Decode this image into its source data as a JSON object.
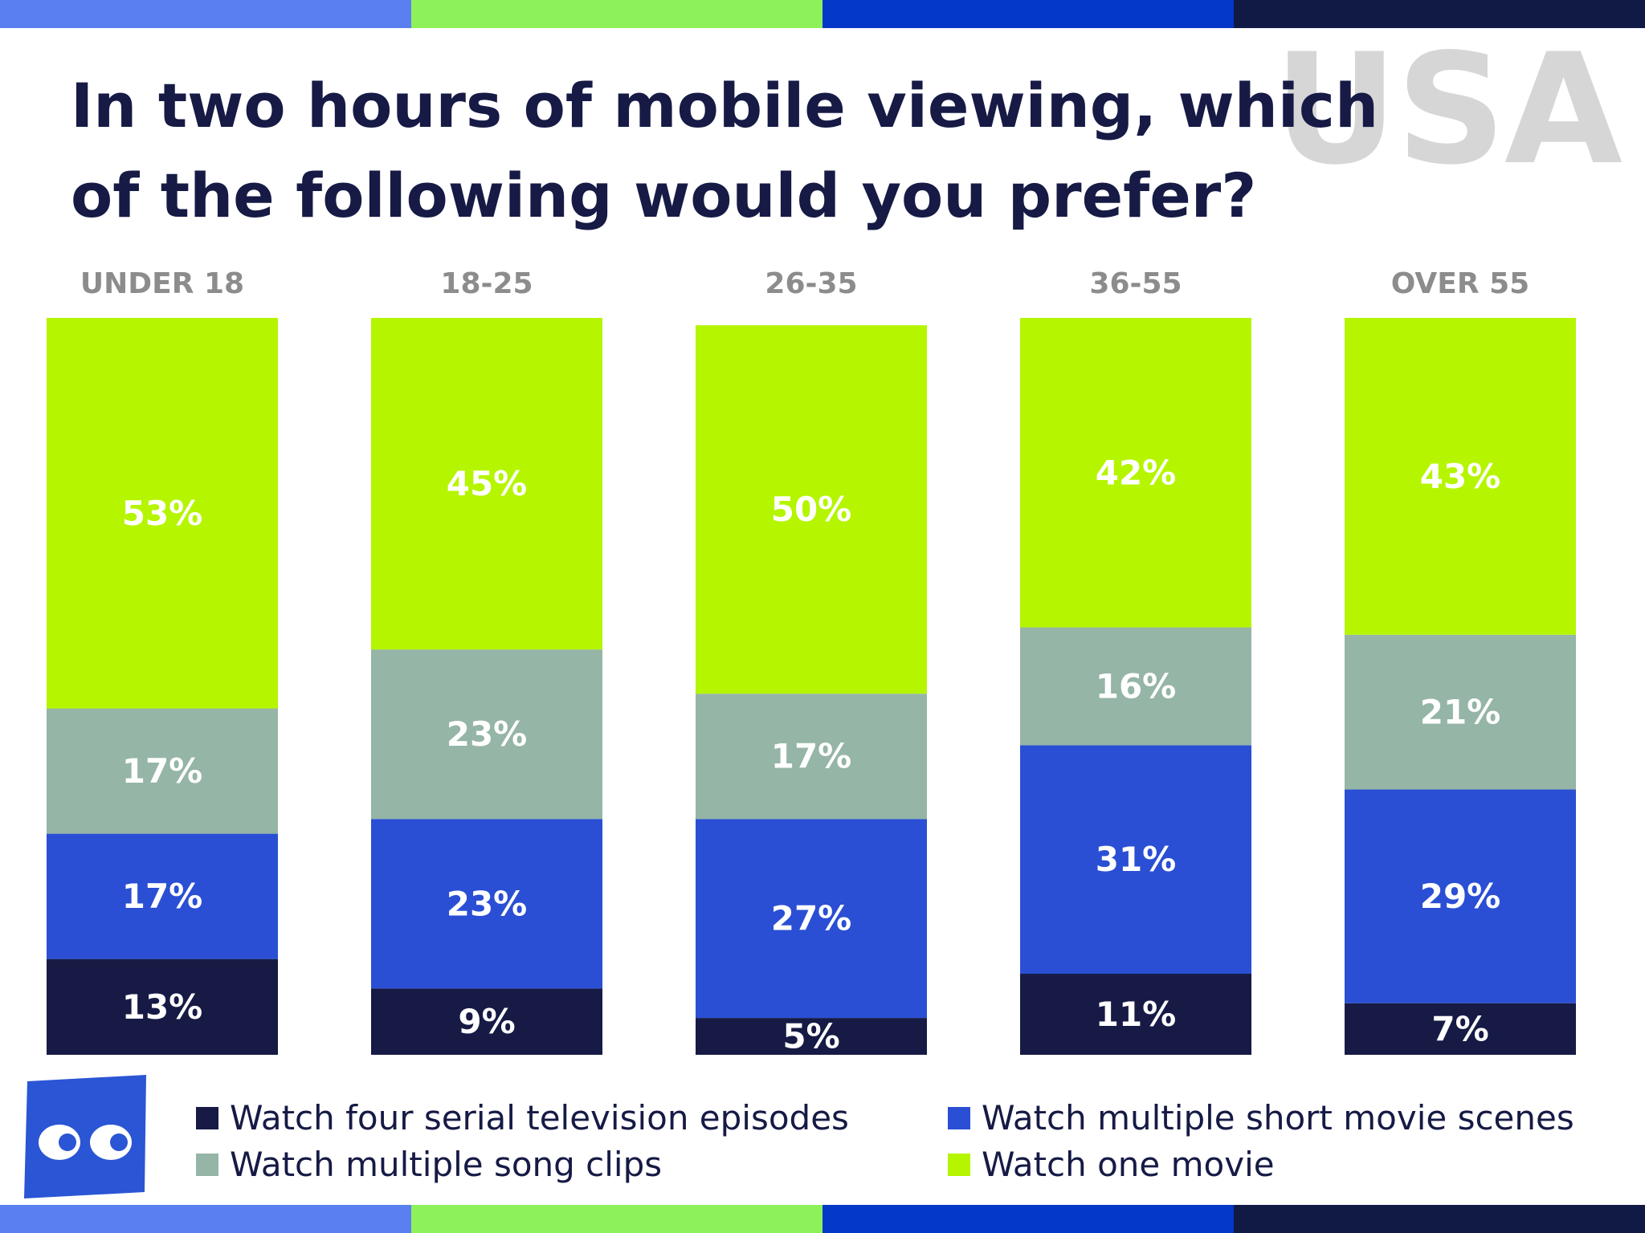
{
  "header": {
    "title": "In two hours of mobile viewing, which of the following would you prefer?",
    "watermark": "USA",
    "stripe_colors": [
      "#5a7ff0",
      "#8df25a",
      "#0338c8",
      "#111a45"
    ]
  },
  "chart_data": {
    "type": "bar",
    "stacked": true,
    "orientation": "vertical",
    "title": "In two hours of mobile viewing, which of the following would you prefer?",
    "categories": [
      "UNDER 18",
      "18-25",
      "26-35",
      "36-55",
      "OVER 55"
    ],
    "ylim": [
      0,
      100
    ],
    "grid": false,
    "legend_position": "bottom",
    "series": [
      {
        "name": "Watch four serial television episodes",
        "color": "#161a45",
        "values": [
          13,
          9,
          5,
          11,
          7
        ]
      },
      {
        "name": "Watch multiple short movie scenes",
        "color": "#2a4fd4",
        "values": [
          17,
          23,
          27,
          31,
          29
        ]
      },
      {
        "name": "Watch multiple song clips",
        "color": "#95b5a6",
        "values": [
          17,
          23,
          17,
          16,
          21
        ]
      },
      {
        "name": "Watch one movie",
        "color": "#b5f500",
        "values": [
          53,
          45,
          50,
          42,
          43
        ]
      }
    ]
  },
  "legend": {
    "items": [
      {
        "label": "Watch four serial television episodes",
        "color": "#161a45"
      },
      {
        "label": "Watch multiple short movie scenes",
        "color": "#2a4fd4"
      },
      {
        "label": "Watch multiple song clips",
        "color": "#95b5a6"
      },
      {
        "label": "Watch one movie",
        "color": "#b5f500"
      }
    ]
  },
  "logo": {
    "icon": "eyes-logo-icon",
    "color": "#2a55d4"
  }
}
